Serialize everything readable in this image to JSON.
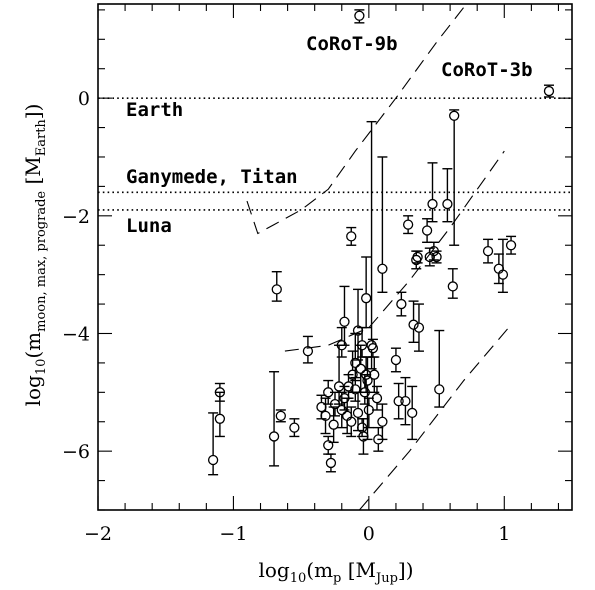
{
  "chart_data": {
    "type": "scatter",
    "xlim": [
      -2.0,
      1.5
    ],
    "ylim": [
      -7.0,
      1.6
    ],
    "xticks": [
      -2,
      -1,
      0,
      1
    ],
    "xtick_labels": [
      "−2",
      "−1",
      "0",
      "1"
    ],
    "yticks": [
      -6,
      -4,
      -2,
      0
    ],
    "ytick_labels": [
      "−6",
      "−4",
      "−2",
      "0"
    ],
    "xlabel": {
      "pre": "log",
      "sub1": "10",
      "mid": "(m",
      "sub2": "p",
      "mid2": " [M",
      "sub3": "Jup",
      "post": "])"
    },
    "ylabel": {
      "pre": "log",
      "sub1": "10",
      "mid": "(m",
      "sub2": "moon, max, prograde",
      "mid2": " [M",
      "sub3": "Earth",
      "post": "])"
    },
    "reference_lines": [
      {
        "name": "Earth",
        "y": 0.0
      },
      {
        "name": "Ganymede, Titan",
        "y": -1.6
      },
      {
        "name": "Luna",
        "y": -1.9
      }
    ],
    "labels": {
      "corot9b": "CoRoT-9b",
      "corot3b": "CoRoT-3b",
      "earth": "Earth",
      "ganymede_titan": "Ganymede, Titan",
      "luna": "Luna"
    },
    "dashed_curves": [
      [
        [
          -0.9,
          -1.75
        ],
        [
          -0.82,
          -2.3
        ],
        [
          -0.7,
          -2.15
        ],
        [
          -0.5,
          -1.9
        ],
        [
          -0.3,
          -1.55
        ],
        [
          -0.1,
          -0.9
        ],
        [
          0.2,
          0.0
        ],
        [
          0.5,
          0.95
        ],
        [
          0.72,
          1.6
        ]
      ],
      [
        [
          -0.62,
          -4.3
        ],
        [
          -0.3,
          -4.2
        ],
        [
          0.0,
          -3.9
        ],
        [
          0.3,
          -3.1
        ],
        [
          0.6,
          -2.2
        ],
        [
          1.0,
          -0.9
        ]
      ],
      [
        [
          -0.07,
          -7.0
        ],
        [
          0.3,
          -6.0
        ],
        [
          0.7,
          -4.8
        ],
        [
          1.05,
          -3.85
        ]
      ]
    ],
    "points": [
      {
        "x": -0.07,
        "y": 1.4,
        "up": 0.1,
        "lo": 0.12
      },
      {
        "x": 1.33,
        "y": 0.12,
        "up": 0.1,
        "lo": 0.1
      },
      {
        "x": -1.15,
        "y": -6.15,
        "up": 0.8,
        "lo": 0.25
      },
      {
        "x": -1.1,
        "y": -5.0,
        "up": 0.15,
        "lo": 0.15
      },
      {
        "x": -1.1,
        "y": -5.45,
        "up": 0.45,
        "lo": 0.3
      },
      {
        "x": -0.68,
        "y": -3.25,
        "up": 0.3,
        "lo": 0.2
      },
      {
        "x": -0.65,
        "y": -5.4,
        "up": 0.1,
        "lo": 0.1
      },
      {
        "x": -0.7,
        "y": -5.75,
        "up": 1.1,
        "lo": 0.5
      },
      {
        "x": -0.55,
        "y": -5.6,
        "up": 0.15,
        "lo": 0.15
      },
      {
        "x": -0.45,
        "y": -4.3,
        "up": 0.25,
        "lo": 0.2
      },
      {
        "x": -0.35,
        "y": -5.25,
        "up": 0.2,
        "lo": 0.2
      },
      {
        "x": -0.32,
        "y": -5.4,
        "up": 0.3,
        "lo": 0.3
      },
      {
        "x": -0.3,
        "y": -5.0,
        "up": 0.2,
        "lo": 0.2
      },
      {
        "x": -0.3,
        "y": -5.9,
        "up": 0.15,
        "lo": 0.15
      },
      {
        "x": -0.28,
        "y": -6.2,
        "up": 0.15,
        "lo": 0.15
      },
      {
        "x": -0.26,
        "y": -5.55,
        "up": 0.3,
        "lo": 0.3
      },
      {
        "x": -0.25,
        "y": -5.2,
        "up": 0.2,
        "lo": 0.2
      },
      {
        "x": -0.22,
        "y": -4.9,
        "up": 0.7,
        "lo": 0.3
      },
      {
        "x": -0.2,
        "y": -5.3,
        "up": 0.3,
        "lo": 0.3
      },
      {
        "x": -0.2,
        "y": -4.2,
        "up": 0.3,
        "lo": 0.2
      },
      {
        "x": -0.18,
        "y": -3.8,
        "up": 0.6,
        "lo": 0.4
      },
      {
        "x": -0.18,
        "y": -5.1,
        "up": 0.2,
        "lo": 0.2
      },
      {
        "x": -0.16,
        "y": -5.4,
        "up": 0.3,
        "lo": 0.3
      },
      {
        "x": -0.15,
        "y": -4.9,
        "up": 0.2,
        "lo": 0.2
      },
      {
        "x": -0.13,
        "y": -5.5,
        "up": 0.25,
        "lo": 0.25
      },
      {
        "x": -0.13,
        "y": -2.35,
        "up": 0.15,
        "lo": 0.15
      },
      {
        "x": -0.12,
        "y": -4.7,
        "up": 0.4,
        "lo": 0.3
      },
      {
        "x": -0.1,
        "y": -4.95,
        "up": 0.2,
        "lo": 0.2
      },
      {
        "x": -0.1,
        "y": -4.5,
        "up": 0.5,
        "lo": 0.3
      },
      {
        "x": -0.08,
        "y": -3.95,
        "up": 0.7,
        "lo": 0.5
      },
      {
        "x": -0.08,
        "y": -5.35,
        "up": 0.35,
        "lo": 0.3
      },
      {
        "x": -0.06,
        "y": -4.6,
        "up": 0.4,
        "lo": 0.4
      },
      {
        "x": -0.05,
        "y": -5.6,
        "up": 0.15,
        "lo": 0.15
      },
      {
        "x": -0.05,
        "y": -4.2,
        "up": 0.3,
        "lo": 0.2
      },
      {
        "x": -0.04,
        "y": -5.75,
        "up": 0.3,
        "lo": 0.3
      },
      {
        "x": -0.03,
        "y": -5.0,
        "up": 0.3,
        "lo": 0.2
      },
      {
        "x": -0.02,
        "y": -3.4,
        "up": 0.7,
        "lo": 0.5
      },
      {
        "x": -0.02,
        "y": -4.7,
        "up": 0.3,
        "lo": 0.3
      },
      {
        "x": -0.01,
        "y": -4.8,
        "up": 0.4,
        "lo": 1.0
      },
      {
        "x": 0.0,
        "y": -5.3,
        "up": 0.2,
        "lo": 0.3
      },
      {
        "x": 0.02,
        "y": -4.2,
        "up": 3.8,
        "lo": 0.4
      },
      {
        "x": 0.03,
        "y": -4.25,
        "up": 0.15,
        "lo": 0.15
      },
      {
        "x": 0.04,
        "y": -4.7,
        "up": 0.3,
        "lo": 0.3
      },
      {
        "x": 0.06,
        "y": -5.1,
        "up": 0.2,
        "lo": 0.2
      },
      {
        "x": 0.07,
        "y": -5.8,
        "up": 0.2,
        "lo": 0.2
      },
      {
        "x": 0.1,
        "y": -2.9,
        "up": 1.9,
        "lo": 0.4
      },
      {
        "x": 0.1,
        "y": -5.5,
        "up": 0.3,
        "lo": 0.3
      },
      {
        "x": 0.2,
        "y": -4.45,
        "up": 0.2,
        "lo": 0.2
      },
      {
        "x": 0.22,
        "y": -5.15,
        "up": 0.3,
        "lo": 0.3
      },
      {
        "x": 0.24,
        "y": -3.5,
        "up": 0.2,
        "lo": 0.2
      },
      {
        "x": 0.27,
        "y": -5.15,
        "up": 0.4,
        "lo": 0.4
      },
      {
        "x": 0.29,
        "y": -2.15,
        "up": 0.15,
        "lo": 0.15
      },
      {
        "x": 0.32,
        "y": -5.35,
        "up": 0.45,
        "lo": 0.45
      },
      {
        "x": 0.33,
        "y": -3.85,
        "up": 0.4,
        "lo": 0.3
      },
      {
        "x": 0.35,
        "y": -2.75,
        "up": 0.15,
        "lo": 0.15
      },
      {
        "x": 0.36,
        "y": -2.7,
        "up": 0.1,
        "lo": 0.1
      },
      {
        "x": 0.37,
        "y": -3.9,
        "up": 0.4,
        "lo": 0.4
      },
      {
        "x": 0.43,
        "y": -2.25,
        "up": 0.2,
        "lo": 0.2
      },
      {
        "x": 0.45,
        "y": -2.7,
        "up": 0.15,
        "lo": 0.15
      },
      {
        "x": 0.47,
        "y": -1.8,
        "up": 0.7,
        "lo": 0.3
      },
      {
        "x": 0.48,
        "y": -2.6,
        "up": 0.15,
        "lo": 0.15
      },
      {
        "x": 0.5,
        "y": -2.7,
        "up": 0.1,
        "lo": 0.1
      },
      {
        "x": 0.52,
        "y": -4.95,
        "up": 1.0,
        "lo": 0.3
      },
      {
        "x": 0.58,
        "y": -1.8,
        "up": 0.6,
        "lo": 0.3
      },
      {
        "x": 0.62,
        "y": -3.2,
        "up": 0.3,
        "lo": 0.2
      },
      {
        "x": 0.63,
        "y": -0.3,
        "up": 0.1,
        "lo": 2.2
      },
      {
        "x": 0.88,
        "y": -2.6,
        "up": 0.2,
        "lo": 0.2
      },
      {
        "x": 0.96,
        "y": -2.9,
        "up": 0.25,
        "lo": 0.25
      },
      {
        "x": 0.99,
        "y": -3.0,
        "up": 0.6,
        "lo": 0.3
      },
      {
        "x": 1.05,
        "y": -2.5,
        "up": 0.15,
        "lo": 0.15
      }
    ]
  }
}
